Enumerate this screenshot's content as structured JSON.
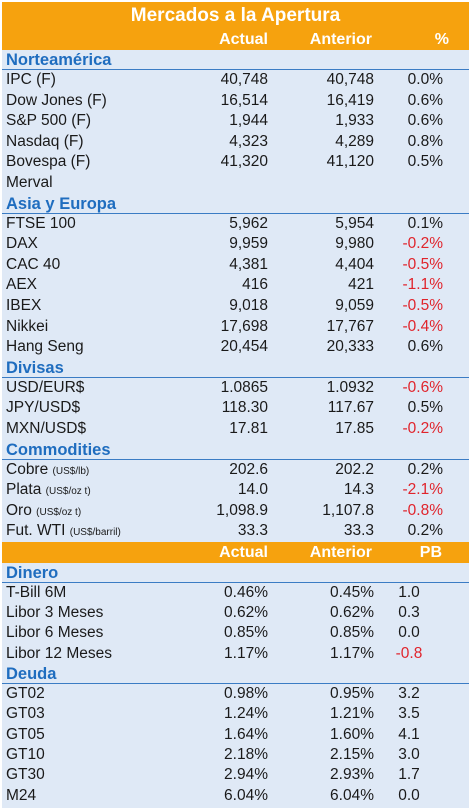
{
  "title": "Mercados a la Apertura",
  "headers": {
    "actual": "Actual",
    "anterior": "Anterior",
    "pct": "%",
    "pb": "PB"
  },
  "sections": {
    "norteamerica": {
      "title": "Norteamérica",
      "rows": [
        {
          "name": "IPC (F)",
          "unit": "",
          "actual": "40,748",
          "anterior": "40,748",
          "change": "0.0%",
          "neg": false
        },
        {
          "name": "Dow Jones (F)",
          "unit": "",
          "actual": "16,514",
          "anterior": "16,419",
          "change": "0.6%",
          "neg": false
        },
        {
          "name": "S&P 500 (F)",
          "unit": "",
          "actual": "1,944",
          "anterior": "1,933",
          "change": "0.6%",
          "neg": false
        },
        {
          "name": "Nasdaq (F)",
          "unit": "",
          "actual": "4,323",
          "anterior": "4,289",
          "change": "0.8%",
          "neg": false
        },
        {
          "name": "Bovespa (F)",
          "unit": "",
          "actual": "41,320",
          "anterior": "41,120",
          "change": "0.5%",
          "neg": false
        },
        {
          "name": "Merval",
          "unit": "",
          "actual": "",
          "anterior": "",
          "change": "",
          "neg": false
        }
      ]
    },
    "asia_europa": {
      "title": "Asia y Europa",
      "rows": [
        {
          "name": "FTSE 100",
          "unit": "",
          "actual": "5,962",
          "anterior": "5,954",
          "change": "0.1%",
          "neg": false
        },
        {
          "name": "DAX",
          "unit": "",
          "actual": "9,959",
          "anterior": "9,980",
          "change": "-0.2%",
          "neg": true
        },
        {
          "name": "CAC 40",
          "unit": "",
          "actual": "4,381",
          "anterior": "4,404",
          "change": "-0.5%",
          "neg": true
        },
        {
          "name": "AEX",
          "unit": "",
          "actual": "416",
          "anterior": "421",
          "change": "-1.1%",
          "neg": true
        },
        {
          "name": "IBEX",
          "unit": "",
          "actual": "9,018",
          "anterior": "9,059",
          "change": "-0.5%",
          "neg": true
        },
        {
          "name": "Nikkei",
          "unit": "",
          "actual": "17,698",
          "anterior": "17,767",
          "change": "-0.4%",
          "neg": true
        },
        {
          "name": "Hang Seng",
          "unit": "",
          "actual": "20,454",
          "anterior": "20,333",
          "change": "0.6%",
          "neg": false
        }
      ]
    },
    "divisas": {
      "title": "Divisas",
      "rows": [
        {
          "name": "USD/EUR$",
          "unit": "",
          "actual": "1.0865",
          "anterior": "1.0932",
          "change": "-0.6%",
          "neg": true
        },
        {
          "name": "JPY/USD$",
          "unit": "",
          "actual": "118.30",
          "anterior": "117.67",
          "change": "0.5%",
          "neg": false
        },
        {
          "name": "MXN/USD$",
          "unit": "",
          "actual": "17.81",
          "anterior": "17.85",
          "change": "-0.2%",
          "neg": true
        }
      ]
    },
    "commodities": {
      "title": "Commodities",
      "rows": [
        {
          "name": "Cobre",
          "unit": "(US$/lb)",
          "actual": "202.6",
          "anterior": "202.2",
          "change": "0.2%",
          "neg": false
        },
        {
          "name": "Plata",
          "unit": "(US$/oz t)",
          "actual": "14.0",
          "anterior": "14.3",
          "change": "-2.1%",
          "neg": true
        },
        {
          "name": "Oro",
          "unit": "(US$/oz t)",
          "actual": "1,098.9",
          "anterior": "1,107.8",
          "change": "-0.8%",
          "neg": true
        },
        {
          "name": "Fut. WTI",
          "unit": "(US$/barril)",
          "actual": "33.3",
          "anterior": "33.3",
          "change": "0.2%",
          "neg": false
        }
      ]
    },
    "dinero": {
      "title": "Dinero",
      "rows": [
        {
          "name": "T-Bill 6M",
          "actual": "0.46%",
          "anterior": "0.45%",
          "pb": "1.0",
          "neg": false
        },
        {
          "name": "Libor 3 Meses",
          "actual": "0.62%",
          "anterior": "0.62%",
          "pb": "0.3",
          "neg": false
        },
        {
          "name": "Libor 6 Meses",
          "actual": "0.85%",
          "anterior": "0.85%",
          "pb": "0.0",
          "neg": false
        },
        {
          "name": "Libor 12 Meses",
          "actual": "1.17%",
          "anterior": "1.17%",
          "pb": "-0.8",
          "neg": true
        }
      ]
    },
    "deuda": {
      "title": "Deuda",
      "rows": [
        {
          "name": "GT02",
          "actual": "0.98%",
          "anterior": "0.95%",
          "pb": "3.2",
          "neg": false
        },
        {
          "name": "GT03",
          "actual": "1.24%",
          "anterior": "1.21%",
          "pb": "3.5",
          "neg": false
        },
        {
          "name": "GT05",
          "actual": "1.64%",
          "anterior": "1.60%",
          "pb": "4.1",
          "neg": false
        },
        {
          "name": "GT10",
          "actual": "2.18%",
          "anterior": "2.15%",
          "pb": "3.0",
          "neg": false
        },
        {
          "name": "GT30",
          "actual": "2.94%",
          "anterior": "2.93%",
          "pb": "1.7",
          "neg": false
        },
        {
          "name": "M24",
          "actual": "6.04%",
          "anterior": "6.04%",
          "pb": "0.0",
          "neg": false
        }
      ]
    }
  },
  "colors": {
    "accent": "#f6a20e",
    "section_text": "#1f6dbf",
    "background": "#dfe9f6",
    "negative": "#e0242c"
  }
}
